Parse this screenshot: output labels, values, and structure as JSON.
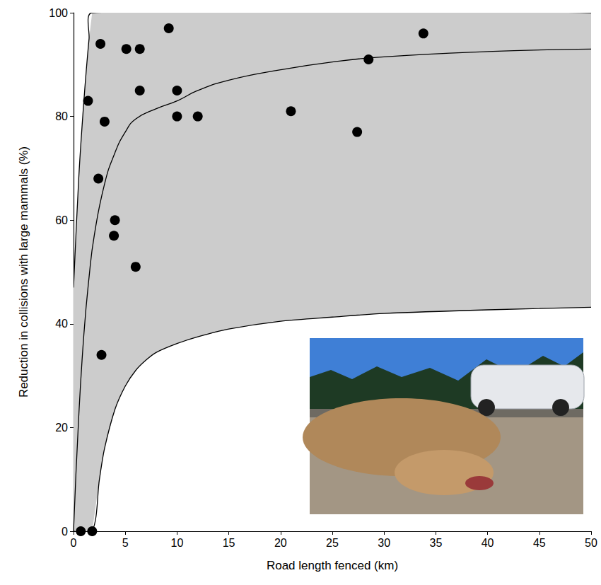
{
  "chart_data": {
    "type": "scatter",
    "xlabel": "Road length fenced (km)",
    "ylabel": "Reduction in collisions with large mammals (%)",
    "xlim": [
      0,
      50
    ],
    "xticks": [
      0,
      5,
      10,
      15,
      20,
      25,
      30,
      35,
      40,
      45,
      50
    ],
    "ylim": [
      0,
      100
    ],
    "yticks": [
      0,
      20,
      40,
      60,
      80,
      100
    ],
    "grid": false,
    "series": [
      {
        "type": "band",
        "color": "#cccccc",
        "upper": {
          "x": [
            0,
            0.5,
            1,
            1.5,
            1.8,
            50
          ],
          "values": [
            47,
            68,
            83,
            95,
            100,
            100
          ]
        },
        "lower": {
          "x": [
            0,
            1.8,
            2.5,
            3,
            4,
            5,
            6,
            7,
            8,
            10,
            12,
            15,
            20,
            25,
            30,
            40,
            50
          ],
          "values": [
            0,
            0,
            10,
            16,
            23.5,
            28,
            31,
            33,
            34.5,
            36.2,
            37.5,
            39,
            40.5,
            41.3,
            42,
            42.7,
            43.2
          ]
        }
      },
      {
        "type": "line",
        "color": "#000000",
        "x": [
          0,
          0.5,
          1,
          1.5,
          2,
          3,
          4,
          5,
          6,
          8,
          10,
          12,
          15,
          20,
          25,
          30,
          40,
          50
        ],
        "values": [
          0,
          22,
          38,
          49,
          57,
          67,
          73,
          77,
          79.5,
          81.5,
          83,
          85,
          87,
          89,
          90.5,
          91.5,
          92.5,
          93
        ]
      },
      {
        "type": "scatter",
        "color": "#000000",
        "marker": "circle",
        "x": [
          0.7,
          1.8,
          1.4,
          2.4,
          2.6,
          2.7,
          3.0,
          3.9,
          4.0,
          5.1,
          6.0,
          6.4,
          6.4,
          9.2,
          10.0,
          10.0,
          12.0,
          21.0,
          27.4,
          28.5,
          33.8
        ],
        "values": [
          0,
          0,
          83,
          68,
          94,
          34,
          79,
          57,
          60,
          93,
          51,
          93,
          85,
          97,
          85,
          80,
          80,
          81,
          77,
          91,
          96
        ]
      }
    ]
  }
}
